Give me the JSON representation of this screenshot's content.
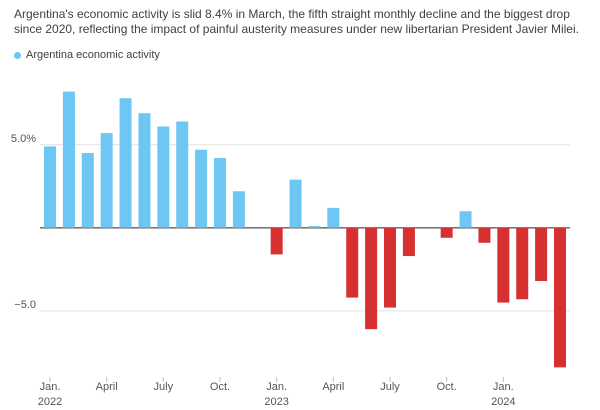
{
  "chart_data": {
    "type": "bar",
    "subtitle": "Argentina's economic activity is slid 8.4% in March, the fifth straight monthly decline and the biggest drop since 2020, reflecting the impact of painful austerity measures under new libertarian President Javier Milei.",
    "legend": [
      {
        "label": "Argentina economic activity",
        "color": "#6ec6f5"
      }
    ],
    "ylim": [
      -8.8,
      9.5
    ],
    "yticks": [
      {
        "value": 5,
        "label": "5.0%"
      },
      {
        "value": 0,
        "label": ""
      },
      {
        "value": -5,
        "label": "−5.0"
      }
    ],
    "x_tick_labels": [
      {
        "index": 0,
        "label": "Jan.",
        "year": "2022"
      },
      {
        "index": 3,
        "label": "April",
        "year": ""
      },
      {
        "index": 6,
        "label": "July",
        "year": ""
      },
      {
        "index": 9,
        "label": "Oct.",
        "year": ""
      },
      {
        "index": 12,
        "label": "Jan.",
        "year": "2023"
      },
      {
        "index": 15,
        "label": "April",
        "year": ""
      },
      {
        "index": 18,
        "label": "July",
        "year": ""
      },
      {
        "index": 21,
        "label": "Oct.",
        "year": ""
      },
      {
        "index": 24,
        "label": "Jan.",
        "year": "2024"
      }
    ],
    "positive_color": "#6ec6f5",
    "negative_color": "#d63030",
    "grid": true,
    "series": [
      {
        "values": [
          4.9,
          8.2,
          4.5,
          5.7,
          7.8,
          6.9,
          6.1,
          6.4,
          4.7,
          4.2,
          2.2,
          0.0,
          -1.6,
          2.9,
          0.1,
          1.2,
          -4.2,
          -6.1,
          -4.8,
          -1.7,
          0.0,
          -0.6,
          1.0,
          -0.9,
          -4.5,
          -4.3,
          -3.2,
          -8.4
        ]
      }
    ]
  }
}
